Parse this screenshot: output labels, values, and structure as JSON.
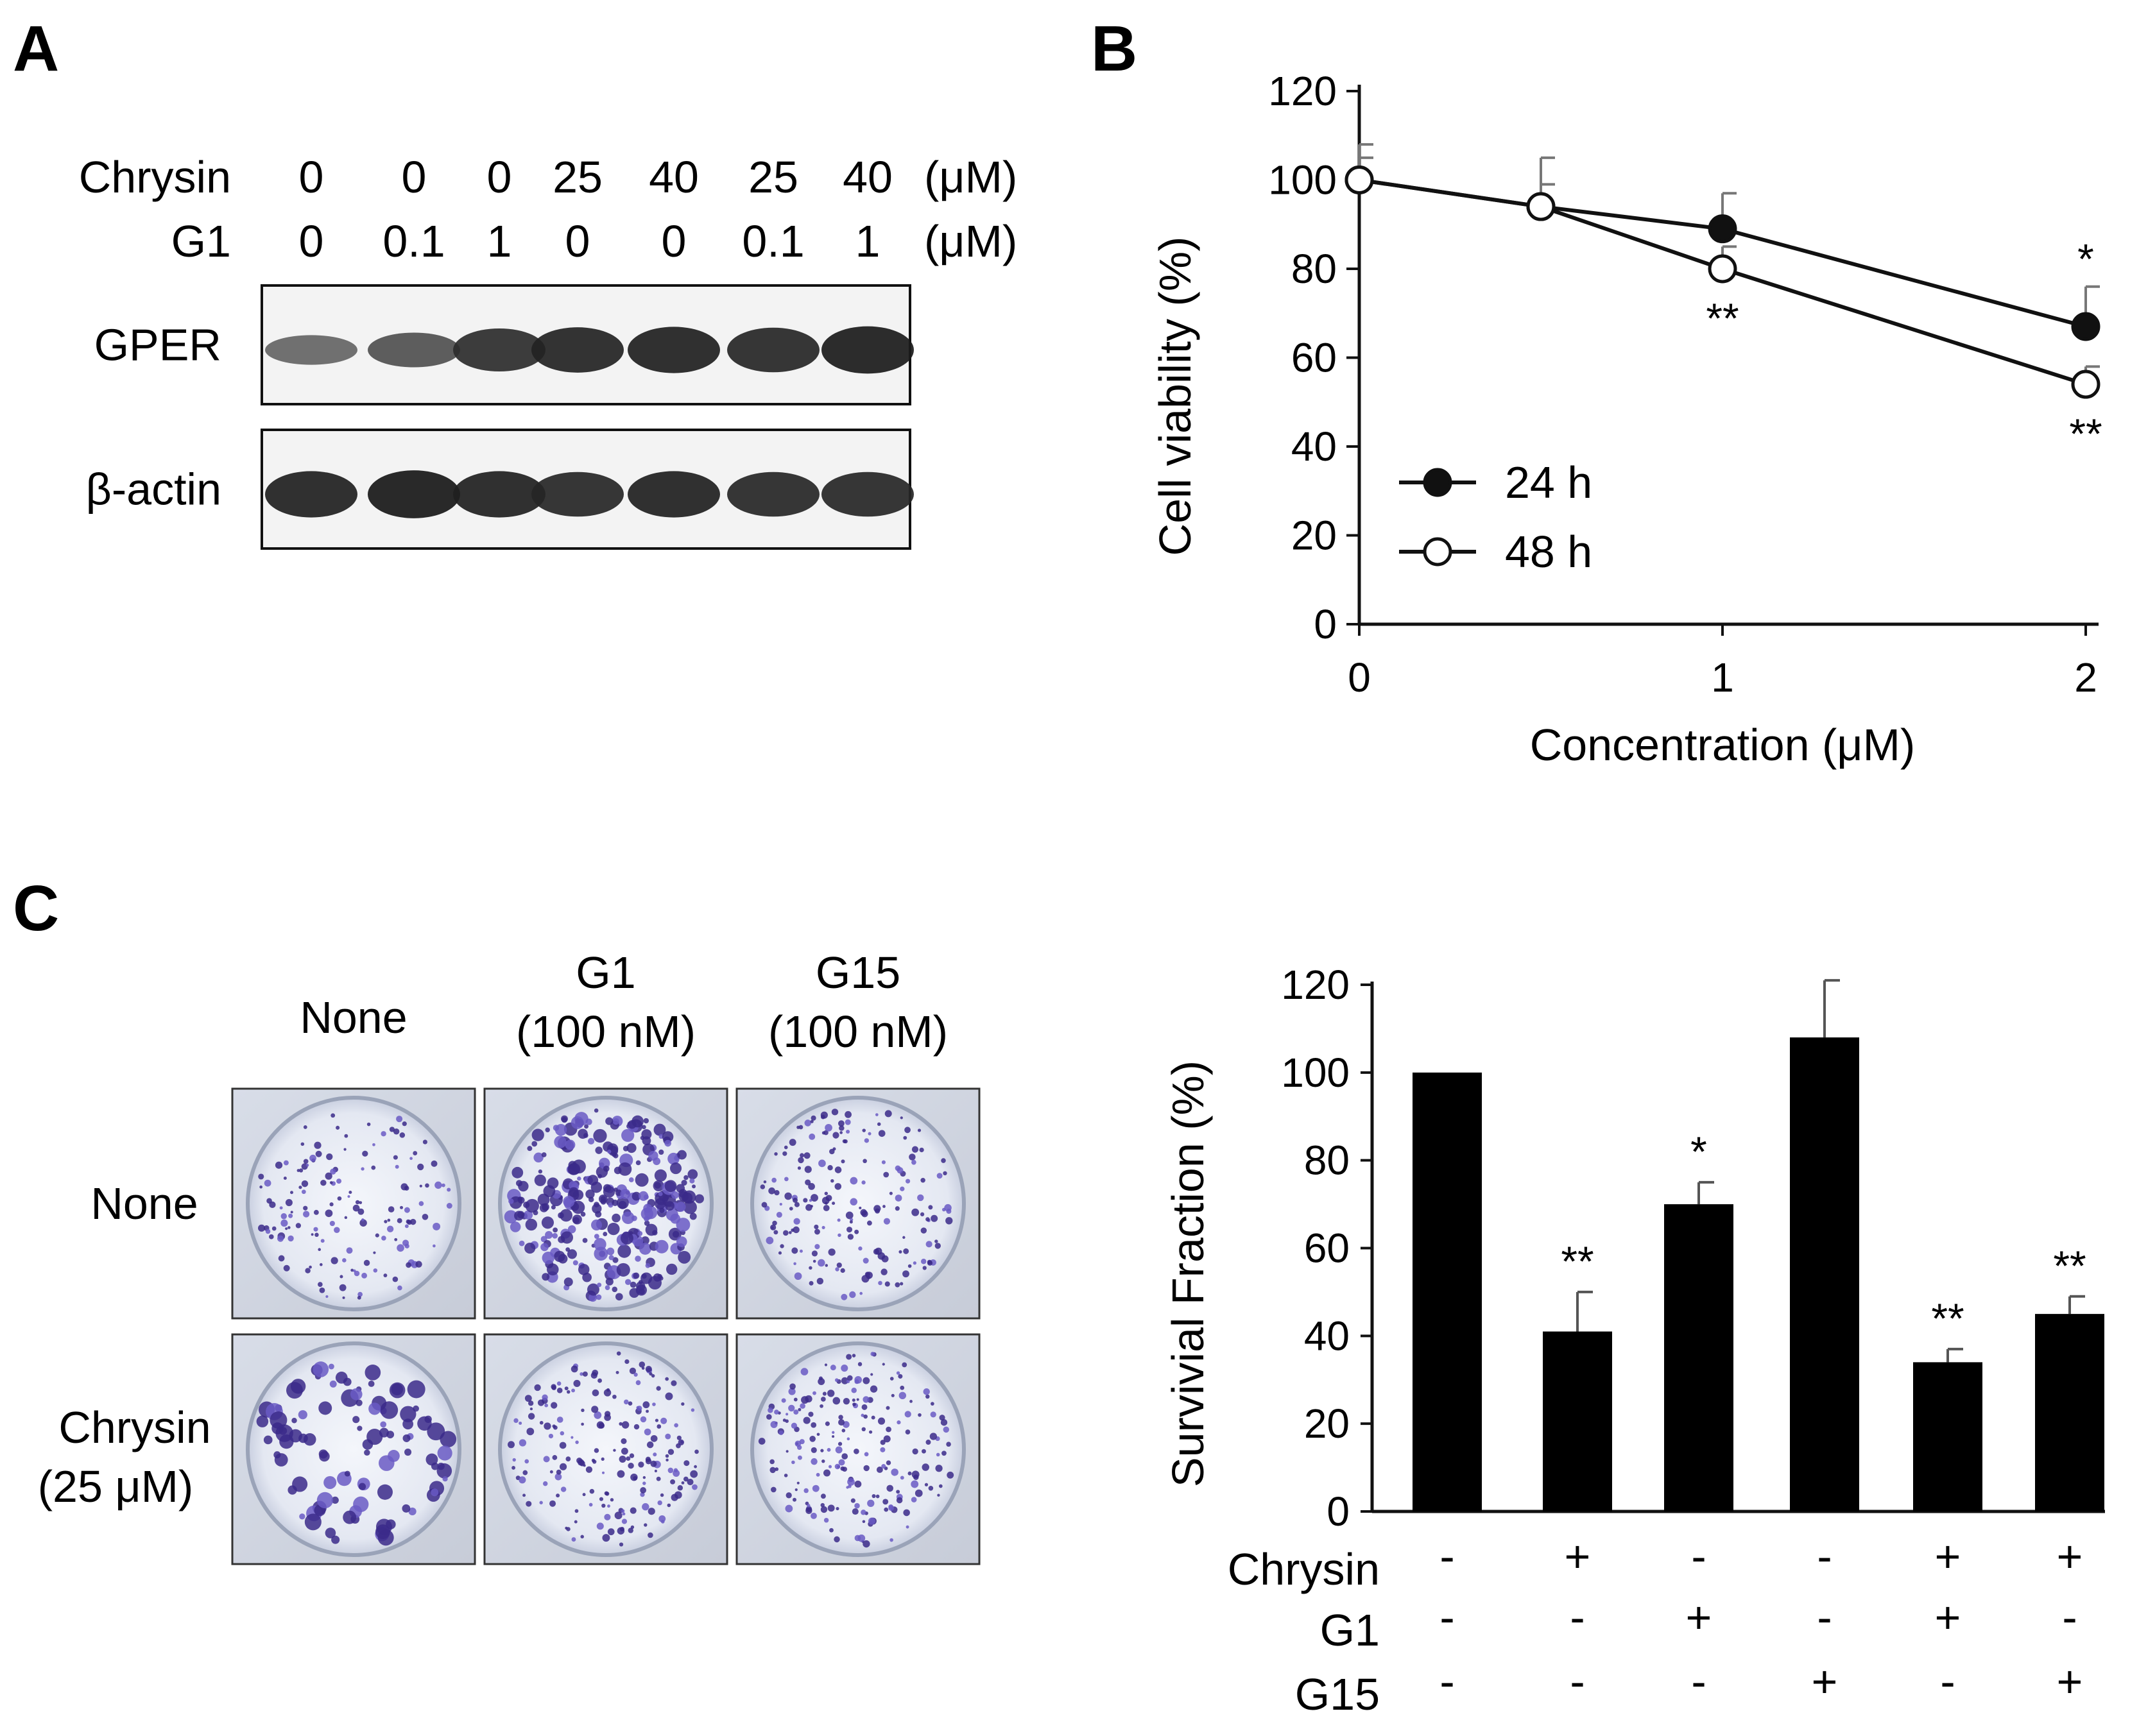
{
  "panels": {
    "a": {
      "letter": "A",
      "rows": [
        {
          "label": "Chrysin",
          "values": [
            "0",
            "0",
            "0",
            "25",
            "40",
            "25",
            "40"
          ],
          "unit": "(μM)"
        },
        {
          "label": "G1",
          "values": [
            "0",
            "0.1",
            "1",
            "0",
            "0",
            "0.1",
            "1"
          ],
          "unit": "(μM)"
        }
      ],
      "blots": [
        {
          "label": "GPER",
          "intensity": [
            0.35,
            0.5,
            0.75,
            0.82,
            0.85,
            0.8,
            0.88
          ]
        },
        {
          "label": "β-actin",
          "intensity": [
            0.85,
            0.9,
            0.85,
            0.8,
            0.85,
            0.8,
            0.8
          ]
        }
      ]
    },
    "b": {
      "letter": "B"
    },
    "c": {
      "letter": "C",
      "col_headers": [
        {
          "line1": "None",
          "line2": ""
        },
        {
          "line1": "G1",
          "line2": "(100 nM)"
        },
        {
          "line1": "G15",
          "line2": "(100 nM)"
        }
      ],
      "row_headers": [
        {
          "line1": "None",
          "line2": ""
        },
        {
          "line1": "Chrysin",
          "line2": "(25 μM)"
        }
      ],
      "colony_density": [
        [
          0.35,
          0.95,
          0.5
        ],
        [
          0.15,
          0.55,
          0.6
        ]
      ]
    }
  },
  "chart_data": [
    {
      "type": "line",
      "panel": "B",
      "xlabel": "Concentration (μM)",
      "ylabel": "Cell viability (%)",
      "ylim": [
        0,
        120
      ],
      "xlim": [
        0,
        2
      ],
      "xticks": [
        0,
        1,
        2
      ],
      "yticks": [
        0,
        20,
        40,
        60,
        80,
        100,
        120
      ],
      "legend": "bottom-left",
      "series": [
        {
          "name": "24 h",
          "marker": "filled-circle",
          "x": [
            0,
            0.5,
            1,
            2
          ],
          "y": [
            100,
            94,
            89,
            67
          ],
          "err": [
            8,
            11,
            8,
            9
          ],
          "sig": [
            "",
            "",
            "",
            "*"
          ]
        },
        {
          "name": "48 h",
          "marker": "open-circle",
          "x": [
            0,
            0.5,
            1,
            2
          ],
          "y": [
            100,
            94,
            80,
            54
          ],
          "err": [
            5,
            5,
            5,
            4
          ],
          "sig": [
            "",
            "",
            "**",
            "**"
          ]
        }
      ]
    },
    {
      "type": "bar",
      "panel": "C",
      "ylabel": "Survivial Fraction (%)",
      "ylim": [
        0,
        120
      ],
      "yticks": [
        0,
        20,
        40,
        60,
        80,
        100,
        120
      ],
      "values": [
        100,
        41,
        70,
        108,
        34,
        45
      ],
      "errors": [
        0,
        9,
        5,
        13,
        3,
        4
      ],
      "significance": [
        "",
        "**",
        "*",
        "",
        "**",
        "**"
      ],
      "conditions": [
        {
          "name": "Chrysin",
          "signs": [
            "-",
            "+",
            "-",
            "-",
            "+",
            "+"
          ]
        },
        {
          "name": "G1",
          "signs": [
            "-",
            "-",
            "+",
            "-",
            "+",
            "-"
          ]
        },
        {
          "name": "G15",
          "signs": [
            "-",
            "-",
            "-",
            "+",
            "-",
            "+"
          ]
        }
      ]
    }
  ]
}
